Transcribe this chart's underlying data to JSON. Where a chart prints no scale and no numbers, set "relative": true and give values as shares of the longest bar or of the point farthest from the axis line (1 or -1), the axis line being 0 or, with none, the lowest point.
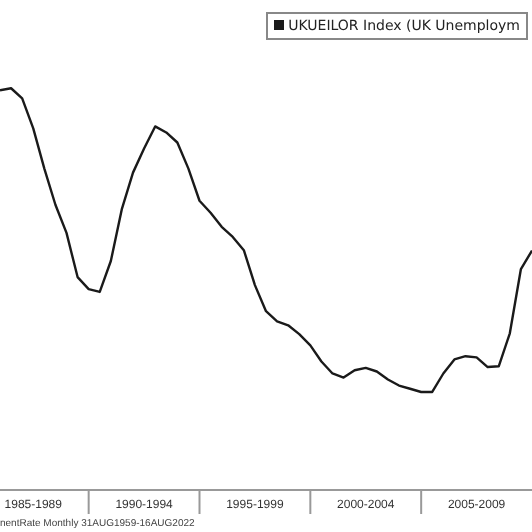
{
  "chart_data": {
    "type": "line",
    "relative": true,
    "legend": "top right",
    "grid": false,
    "marker": "none",
    "line_style": "solid",
    "categories": [
      null,
      null,
      null,
      "1985-1989",
      null,
      null,
      null,
      null,
      null,
      null,
      null,
      null,
      null,
      "1990-1994",
      null,
      null,
      null,
      null,
      null,
      null,
      null,
      null,
      null,
      "1995-1999",
      null,
      null,
      null,
      null,
      null,
      null,
      null,
      null,
      null,
      "2000-2004",
      null,
      null,
      null,
      null,
      null,
      null,
      null,
      null,
      null,
      "2005-2009",
      null,
      null,
      null,
      null,
      null
    ],
    "annotations": [
      "nentRate  Monthly 31AUG1959-16AUG2022"
    ],
    "series": [
      {
        "name": "UKUEILOR Index (UK Unemploym",
        "color": "#1a1a1a",
        "values": [
          0.995,
          1.0,
          0.975,
          0.9,
          0.8,
          0.71,
          0.64,
          0.53,
          0.5,
          0.493,
          0.57,
          0.7,
          0.79,
          0.85,
          0.905,
          0.89,
          0.865,
          0.8,
          0.72,
          0.69,
          0.655,
          0.63,
          0.597,
          0.51,
          0.445,
          0.42,
          0.41,
          0.388,
          0.36,
          0.32,
          0.29,
          0.28,
          0.298,
          0.304,
          0.295,
          0.275,
          0.26,
          0.252,
          0.244,
          0.244,
          0.29,
          0.325,
          0.333,
          0.33,
          0.306,
          0.308,
          0.39,
          0.55,
          0.596
        ]
      }
    ]
  }
}
